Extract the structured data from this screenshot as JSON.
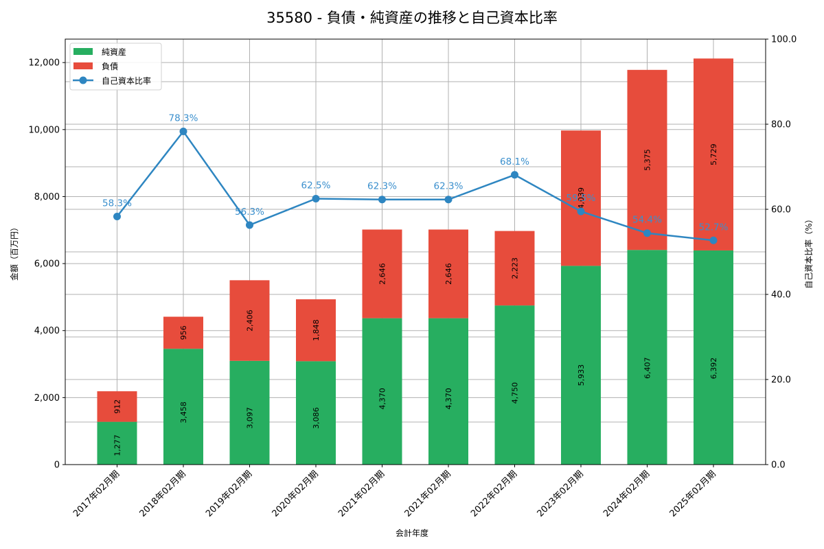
{
  "chart_data": {
    "type": "bar",
    "subtype": "stacked bar + line (dual axis)",
    "title": "35580 - 負債・純資産の推移と自己資本比率",
    "xlabel": "会計年度",
    "ylabel": "金額（百万円）",
    "y2label": "自己資本比率（%）",
    "ylim": [
      0,
      12700
    ],
    "y2lim": [
      0,
      100
    ],
    "yticks": [
      "0",
      "2,000",
      "4,000",
      "6,000",
      "8,000",
      "10,000",
      "12,000"
    ],
    "y2ticks": [
      "0.0",
      "20.0",
      "40.0",
      "60.0",
      "80.0",
      "100.0"
    ],
    "grid": true,
    "legend_position": "upper left",
    "categories": [
      "2017年02月期",
      "2018年02月期",
      "2019年02月期",
      "2020年02月期",
      "2021年02月期",
      "2021年02月期",
      "2022年02月期",
      "2023年02月期",
      "2024年02月期",
      "2025年02月期"
    ],
    "series": [
      {
        "name": "純資産",
        "type": "bar",
        "axis": "left",
        "color": "#27ae60",
        "values": [
          1277,
          3458,
          3097,
          3086,
          4370,
          4370,
          4750,
          5933,
          6407,
          6392
        ],
        "labels": [
          "1,277",
          "3,458",
          "3,097",
          "3,086",
          "4,370",
          "4,370",
          "4,750",
          "5,933",
          "6,407",
          "6,392"
        ]
      },
      {
        "name": "負債",
        "type": "bar",
        "axis": "left",
        "color": "#e74c3c",
        "values": [
          912,
          956,
          2406,
          1848,
          2646,
          2646,
          2223,
          4039,
          5375,
          5729
        ],
        "labels": [
          "912",
          "956",
          "2,406",
          "1,848",
          "2,646",
          "2,646",
          "2,223",
          "4,039",
          "5,375",
          "5,729"
        ]
      },
      {
        "name": "自己資本比率",
        "type": "line",
        "axis": "right",
        "color": "#2e86c1",
        "values": [
          58.3,
          78.3,
          56.3,
          62.5,
          62.3,
          62.3,
          68.1,
          59.5,
          54.4,
          52.7
        ],
        "labels": [
          "58.3%",
          "78.3%",
          "56.3%",
          "62.5%",
          "62.3%",
          "62.3%",
          "68.1%",
          "59.5%",
          "54.4%",
          "52.7%"
        ]
      }
    ]
  },
  "legend": {
    "items": [
      {
        "label": "純資産"
      },
      {
        "label": "負債"
      },
      {
        "label": "自己資本比率"
      }
    ]
  }
}
